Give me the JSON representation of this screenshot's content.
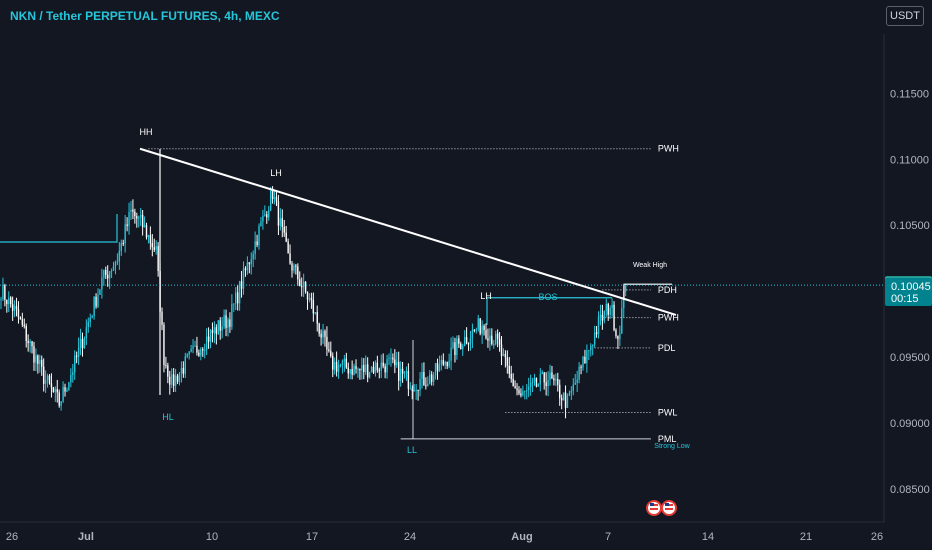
{
  "header": {
    "title": "NKN / Tether PERPETUAL FUTURES, 4h, MEXC",
    "currency": "USDT"
  },
  "colors": {
    "background": "#131722",
    "candle_up": "#26c6da",
    "candle_down": "#ffffff",
    "accent": "#26c6da",
    "trendline": "#ffffff",
    "grid_text": "#b2b5be"
  },
  "chart_data": {
    "type": "candlestick",
    "symbol": "NKN/USDT",
    "timeframe": "4h",
    "exchange": "MEXC",
    "ylim": [
      0.0825,
      0.1195
    ],
    "y_ticks": [
      "0.11500",
      "0.11000",
      "0.10500",
      "0.10000",
      "0.09500",
      "0.09000",
      "0.08500"
    ],
    "x_ticks": [
      "26",
      "Jul",
      "10",
      "17",
      "24",
      "Aug",
      "7",
      "14",
      "21",
      "26"
    ],
    "current_price": "0.10046",
    "last_price": "0.10045",
    "countdown": "00:15",
    "path_points": [
      {
        "i": 0,
        "p": 0.1001
      },
      {
        "i": 8,
        "p": 0.0983
      },
      {
        "i": 22,
        "p": 0.0935
      },
      {
        "i": 30,
        "p": 0.0915
      },
      {
        "i": 38,
        "p": 0.0945
      },
      {
        "i": 52,
        "p": 0.1008
      },
      {
        "i": 60,
        "p": 0.1025
      },
      {
        "i": 67,
        "p": 0.106
      },
      {
        "i": 73,
        "p": 0.105
      },
      {
        "i": 80,
        "p": 0.103
      },
      {
        "i": 84,
        "p": 0.095
      },
      {
        "i": 88,
        "p": 0.093
      },
      {
        "i": 100,
        "p": 0.0955
      },
      {
        "i": 110,
        "p": 0.097
      },
      {
        "i": 118,
        "p": 0.098
      },
      {
        "i": 126,
        "p": 0.1015
      },
      {
        "i": 134,
        "p": 0.105
      },
      {
        "i": 140,
        "p": 0.1075
      },
      {
        "i": 148,
        "p": 0.1025
      },
      {
        "i": 160,
        "p": 0.099
      },
      {
        "i": 170,
        "p": 0.0945
      },
      {
        "i": 185,
        "p": 0.094
      },
      {
        "i": 200,
        "p": 0.0945
      },
      {
        "i": 212,
        "p": 0.093
      },
      {
        "i": 222,
        "p": 0.0935
      },
      {
        "i": 236,
        "p": 0.096
      },
      {
        "i": 248,
        "p": 0.0975
      },
      {
        "i": 256,
        "p": 0.096
      },
      {
        "i": 262,
        "p": 0.0935
      },
      {
        "i": 268,
        "p": 0.092
      },
      {
        "i": 282,
        "p": 0.0935
      },
      {
        "i": 292,
        "p": 0.0915
      },
      {
        "i": 300,
        "p": 0.0945
      },
      {
        "i": 308,
        "p": 0.0975
      },
      {
        "i": 314,
        "p": 0.099
      },
      {
        "i": 318,
        "p": 0.0965
      },
      {
        "i": 322,
        "p": 0.1004
      }
    ],
    "candle_count": 323,
    "trendline": {
      "from": {
        "i": 72,
        "p": 0.1108
      },
      "to": {
        "i": 345,
        "p": 0.0982
      }
    },
    "levels": [
      {
        "label": "PWH",
        "price": 0.1108,
        "style": "dotted",
        "from_i": 76,
        "to_i": 335
      },
      {
        "label": "PDH",
        "price": 0.1001,
        "style": "dotted",
        "from_i": 310,
        "to_i": 335
      },
      {
        "label": "PWH",
        "price": 0.098,
        "style": "dotted",
        "from_i": 310,
        "to_i": 335
      },
      {
        "label": "PDL",
        "price": 0.0957,
        "style": "dotted",
        "from_i": 306,
        "to_i": 335
      },
      {
        "label": "PWL",
        "price": 0.0908,
        "style": "dotted",
        "from_i": 260,
        "to_i": 335
      },
      {
        "label": "PML",
        "price": 0.0888,
        "style": "solid",
        "from_i": 206,
        "to_i": 335
      }
    ],
    "annotations": [
      {
        "text": "HH",
        "i": 73,
        "price": 0.1115
      },
      {
        "text": "LH",
        "i": 138,
        "price": 0.1079
      },
      {
        "text": "LH",
        "i": 243,
        "price": 0.101
      },
      {
        "text": "HL",
        "i": 84,
        "price": 0.09
      },
      {
        "text": "LL",
        "i": 206,
        "price": 0.0867
      },
      {
        "text": "BOS",
        "i": 274,
        "price": 0.1008
      },
      {
        "text": "Weak High",
        "i": 336,
        "price": 0.1013
      },
      {
        "text": "Strong Low",
        "i": 334,
        "price": 0.0878
      }
    ]
  }
}
